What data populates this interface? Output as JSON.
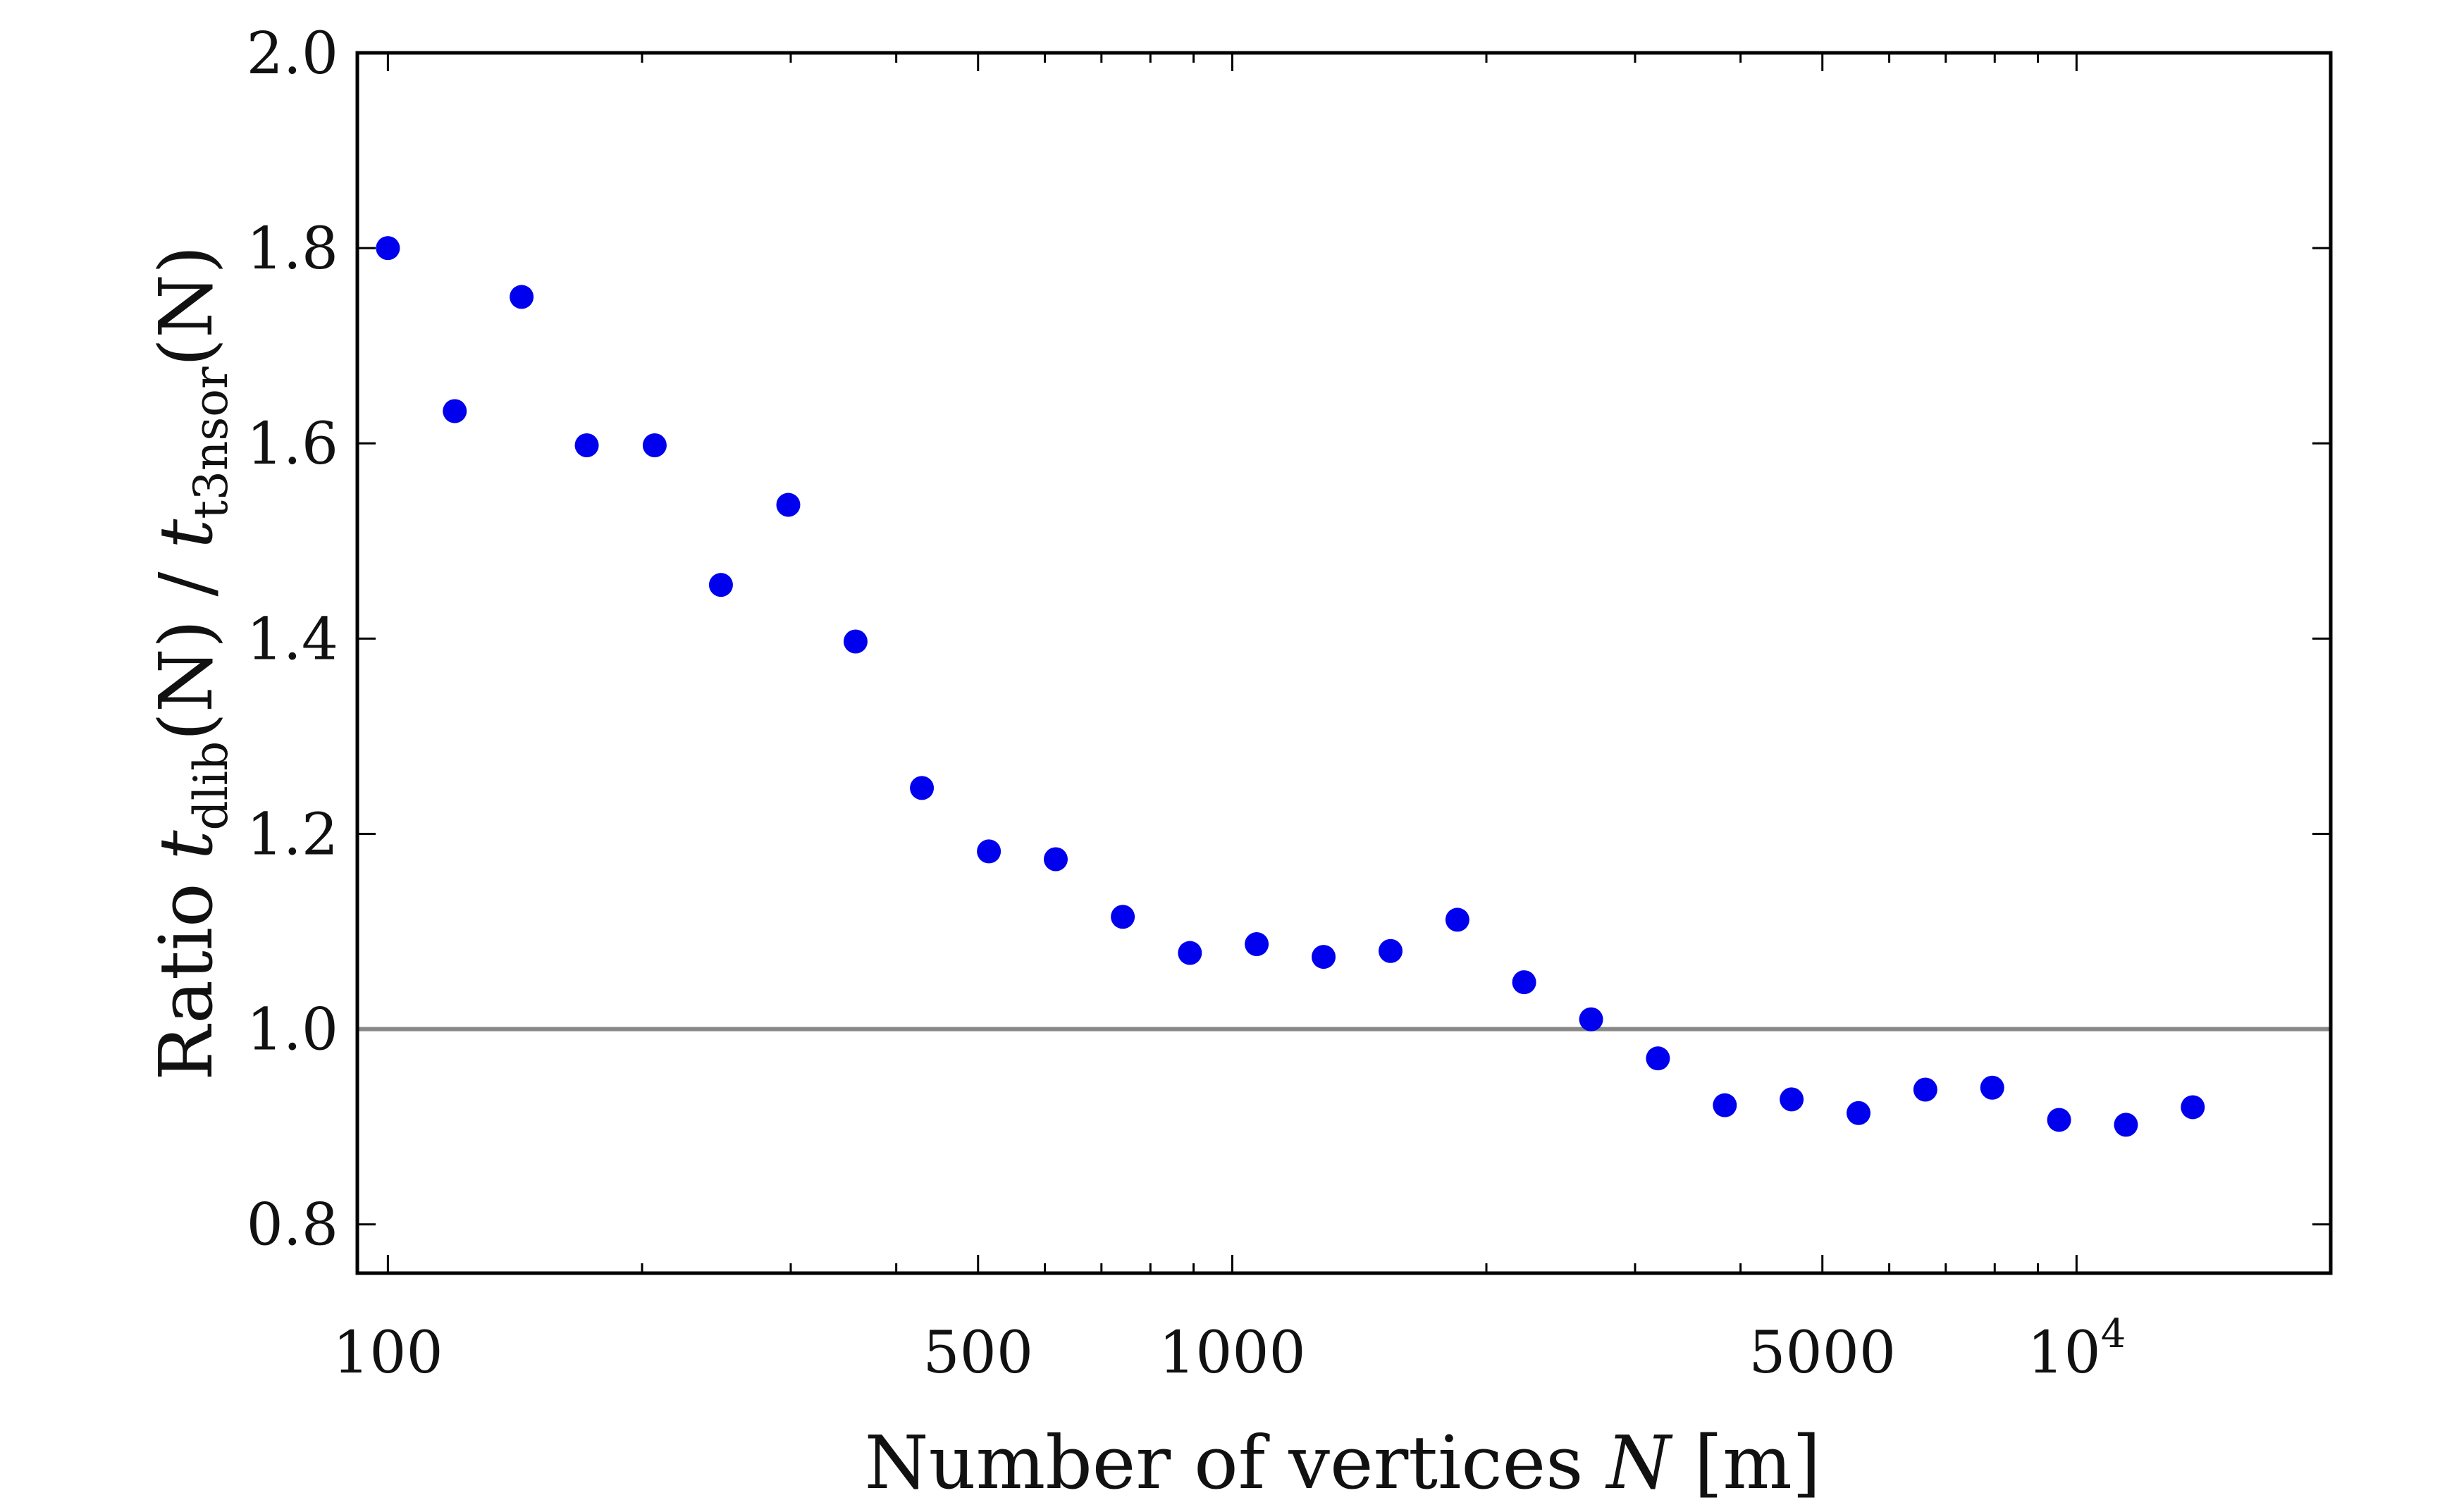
{
  "chart_data": {
    "type": "scatter",
    "xlabel": {
      "prefix": "Number of vertices ",
      "var": "N",
      "suffix": " [m]"
    },
    "ylabel": {
      "prefix": "Ratio ",
      "t1": "t",
      "sub1": "dlib",
      "mid": "(N) / ",
      "t2": "t",
      "sub2": "t3nsor",
      "end": "(N)"
    },
    "x_scale": "log",
    "xlim": [
      92,
      20000
    ],
    "ylim": [
      0.75,
      2.0
    ],
    "x_ticks": [
      {
        "value": 100,
        "label": "100"
      },
      {
        "value": 500,
        "label": "500"
      },
      {
        "value": 1000,
        "label": "1000"
      },
      {
        "value": 5000,
        "label": "5000"
      },
      {
        "value": 10000,
        "label": "10",
        "sup": "4"
      }
    ],
    "x_minor_ticks": [
      200,
      300,
      400,
      600,
      700,
      800,
      900,
      2000,
      3000,
      4000,
      6000,
      7000,
      8000,
      9000
    ],
    "y_ticks": [
      {
        "value": 0.8,
        "label": "0.8"
      },
      {
        "value": 1.0,
        "label": "1.0"
      },
      {
        "value": 1.2,
        "label": "1.2"
      },
      {
        "value": 1.4,
        "label": "1.4"
      },
      {
        "value": 1.6,
        "label": "1.6"
      },
      {
        "value": 1.8,
        "label": "1.8"
      },
      {
        "value": 2.0,
        "label": "2.0"
      }
    ],
    "reference_line": {
      "y": 1.0,
      "color": "#888888"
    },
    "series": [
      {
        "color": "#0000ee",
        "points": [
          {
            "x": 100,
            "y": 1.8
          },
          {
            "x": 120,
            "y": 1.633
          },
          {
            "x": 144,
            "y": 1.75
          },
          {
            "x": 172,
            "y": 1.598
          },
          {
            "x": 207,
            "y": 1.598
          },
          {
            "x": 248,
            "y": 1.455
          },
          {
            "x": 298,
            "y": 1.537
          },
          {
            "x": 358,
            "y": 1.397
          },
          {
            "x": 429,
            "y": 1.247
          },
          {
            "x": 515,
            "y": 1.182
          },
          {
            "x": 618,
            "y": 1.174
          },
          {
            "x": 742,
            "y": 1.115
          },
          {
            "x": 891,
            "y": 1.078
          },
          {
            "x": 1069,
            "y": 1.087
          },
          {
            "x": 1283,
            "y": 1.074
          },
          {
            "x": 1540,
            "y": 1.08
          },
          {
            "x": 1848,
            "y": 1.112
          },
          {
            "x": 2217,
            "y": 1.048
          },
          {
            "x": 2661,
            "y": 1.01
          },
          {
            "x": 3193,
            "y": 0.97
          },
          {
            "x": 3832,
            "y": 0.922
          },
          {
            "x": 4598,
            "y": 0.928
          },
          {
            "x": 5518,
            "y": 0.914
          },
          {
            "x": 6621,
            "y": 0.938
          },
          {
            "x": 7946,
            "y": 0.94
          },
          {
            "x": 9535,
            "y": 0.907
          },
          {
            "x": 11442,
            "y": 0.902
          },
          {
            "x": 13730,
            "y": 0.92
          }
        ]
      }
    ]
  }
}
